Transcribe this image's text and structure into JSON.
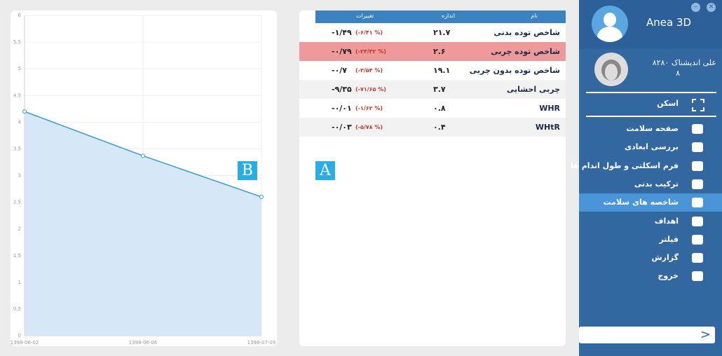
{
  "sidebar": {
    "app_title": "Anea 3D",
    "user_name": "علی اندیشناک ۸۲۸۰",
    "user_id": "۸",
    "scan": "اسکن",
    "menu": [
      {
        "label": "صفحه سلامت",
        "active": false
      },
      {
        "label": "بررسی ابعادی",
        "active": false
      },
      {
        "label": "فرم اسکلتی و طول اندام ها",
        "active": false
      },
      {
        "label": "ترکیب بدنی",
        "active": false
      },
      {
        "label": "شاخصه های سلامت",
        "active": true
      },
      {
        "label": "اهداف",
        "active": false
      },
      {
        "label": "فیلتر",
        "active": false
      },
      {
        "label": "گزارش",
        "active": false
      },
      {
        "label": "خروج",
        "active": false
      }
    ]
  },
  "table": {
    "columns": [
      "نام",
      "اندازه",
      "تغییرات"
    ],
    "rows": [
      {
        "name": "شاخص توده بدنی",
        "size": "۲۱.۷",
        "change": "-۱/۴۹",
        "percent": "(-۶/۴۱ %)",
        "highlighted": false
      },
      {
        "name": "شاخص توده چربی",
        "size": "۲.۶",
        "change": "-۰/۷۹",
        "percent": "(-۲۳/۳۲ %)",
        "highlighted": true
      },
      {
        "name": "شاخص توده بدون چربی",
        "size": "۱۹.۱",
        "change": "-۰/۷",
        "percent": "(-۳/۵۴ %)",
        "highlighted": false
      },
      {
        "name": "چربی احشایی",
        "size": "۳.۷",
        "change": "-۹/۳۵",
        "percent": "(-۷۱/۶۵ %)",
        "highlighted": false
      },
      {
        "name": "WHR",
        "size": "۰.۸",
        "change": "-۰/۰۱",
        "percent": "(-۱/۶۲ %)",
        "highlighted": false
      },
      {
        "name": "WHtR",
        "size": "۰.۴",
        "change": "-۰/۰۳",
        "percent": "(-۵/۷۸ %)",
        "highlighted": false
      }
    ]
  },
  "labels": {
    "a": "A",
    "b": "B"
  },
  "chart_data": {
    "type": "line",
    "categories": [
      "1398-06-02",
      "1398-06-06",
      "1398-07-09"
    ],
    "series": [
      {
        "name": "شاخص توده چربی",
        "color": "#3a9ad0",
        "values": [
          4.2,
          3.37,
          2.6
        ]
      }
    ],
    "ylim": [
      0,
      6
    ],
    "yticks": [
      0,
      0.5,
      1,
      1.5,
      2,
      2.5,
      3,
      3.5,
      4,
      4.5,
      5,
      5.5,
      6
    ],
    "grid": true,
    "area": true
  }
}
